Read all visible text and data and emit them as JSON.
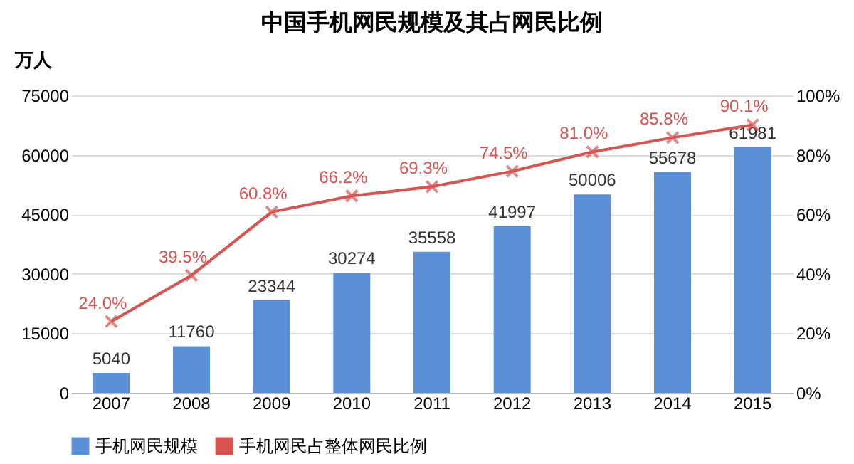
{
  "chart_data": {
    "type": "bar",
    "title": "中国手机网民规模及其占网民比例",
    "ylabel": "万人",
    "categories": [
      "2007",
      "2008",
      "2009",
      "2010",
      "2011",
      "2012",
      "2013",
      "2014",
      "2015"
    ],
    "series": [
      {
        "name": "手机网民规模",
        "color": "#5b8fd6",
        "values": [
          5040,
          11760,
          23344,
          30274,
          35558,
          41997,
          50006,
          55678,
          61981
        ],
        "value_labels": [
          "5040",
          "11760",
          "23344",
          "30274",
          "35558",
          "41997",
          "50006",
          "55678",
          "61981"
        ]
      },
      {
        "name": "手机网民占整体网民比例",
        "type": "line",
        "axis": "y2",
        "color": "#d9534f",
        "values": [
          24.0,
          39.5,
          60.8,
          66.2,
          69.3,
          74.5,
          81.0,
          85.8,
          90.1
        ],
        "value_labels": [
          "24.0%",
          "39.5%",
          "60.8%",
          "66.2%",
          "69.3%",
          "74.5%",
          "81.0%",
          "85.8%",
          "90.1%"
        ]
      }
    ],
    "ylim": [
      0,
      75000
    ],
    "yticks": [
      0,
      15000,
      30000,
      45000,
      60000,
      75000
    ],
    "y2lim": [
      0,
      100
    ],
    "y2ticks": [
      {
        "value": 0,
        "label": "0%"
      },
      {
        "value": 20,
        "label": "20%"
      },
      {
        "value": 40,
        "label": "40%"
      },
      {
        "value": 60,
        "label": "60%"
      },
      {
        "value": 80,
        "label": "80%"
      },
      {
        "value": 100,
        "label": "100%"
      }
    ],
    "grid": "y",
    "legend": "bottom",
    "marker": "cross",
    "line_style": "solid"
  }
}
